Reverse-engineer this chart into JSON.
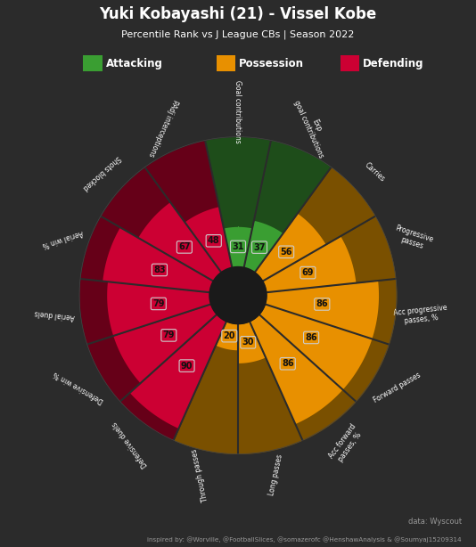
{
  "title": "Yuki Kobayashi (21) - Vissel Kobe",
  "subtitle": "Percentile Rank vs J League CBs | Season 2022",
  "bg_color": "#2b2b2b",
  "slices": [
    {
      "label": "Goal contributions",
      "value": 31,
      "category": "attacking",
      "fill_color": "#3a9e32",
      "dark_color": "#1e4d1a"
    },
    {
      "label": "Exp\ngoal contributions",
      "value": 37,
      "category": "attacking",
      "fill_color": "#3a9e32",
      "dark_color": "#1e4d1a"
    },
    {
      "label": "Carries",
      "value": 56,
      "category": "possession",
      "fill_color": "#e89000",
      "dark_color": "#7a5000"
    },
    {
      "label": "Progressive\npasses",
      "value": 69,
      "category": "possession",
      "fill_color": "#e89000",
      "dark_color": "#7a5000"
    },
    {
      "label": "Acc progressive\npasses, %",
      "value": 86,
      "category": "possession",
      "fill_color": "#e89000",
      "dark_color": "#7a5000"
    },
    {
      "label": "Forward passes",
      "value": 86,
      "category": "possession",
      "fill_color": "#e89000",
      "dark_color": "#7a5000"
    },
    {
      "label": "Acc forward\npasses, %",
      "value": 86,
      "category": "possession",
      "fill_color": "#e89000",
      "dark_color": "#7a5000"
    },
    {
      "label": "Long passes",
      "value": 30,
      "category": "possession",
      "fill_color": "#e89000",
      "dark_color": "#7a5000"
    },
    {
      "label": "Through passes",
      "value": 20,
      "category": "possession",
      "fill_color": "#e89000",
      "dark_color": "#7a5000"
    },
    {
      "label": "Defensive duels",
      "value": 90,
      "category": "defending",
      "fill_color": "#cc0033",
      "dark_color": "#660018"
    },
    {
      "label": "Defensive win %",
      "value": 79,
      "category": "defending",
      "fill_color": "#cc0033",
      "dark_color": "#660018"
    },
    {
      "label": "Aerial duels",
      "value": 79,
      "category": "defending",
      "fill_color": "#cc0033",
      "dark_color": "#660018"
    },
    {
      "label": "Aerial win %",
      "value": 83,
      "category": "defending",
      "fill_color": "#cc0033",
      "dark_color": "#660018"
    },
    {
      "label": "Shots blocked",
      "value": 67,
      "category": "defending",
      "fill_color": "#cc0033",
      "dark_color": "#660018"
    },
    {
      "label": "PAdj interceptions",
      "value": 48,
      "category": "defending",
      "fill_color": "#cc0033",
      "dark_color": "#660018"
    }
  ],
  "legend": [
    {
      "label": "Attacking",
      "color": "#3a9e32"
    },
    {
      "label": "Possession",
      "color": "#e89000"
    },
    {
      "label": "Defending",
      "color": "#cc0033"
    }
  ],
  "inner_r": 0.18,
  "outer_r": 1.0,
  "max_val": 100,
  "label_fontsize": 5.5,
  "value_fontsize": 7.0,
  "footer1": "data: Wyscout",
  "footer2": "inspired by: @Worville, @FootballSlices, @somazerofc @HenshawAnalysis & @Soumyaj15209314"
}
